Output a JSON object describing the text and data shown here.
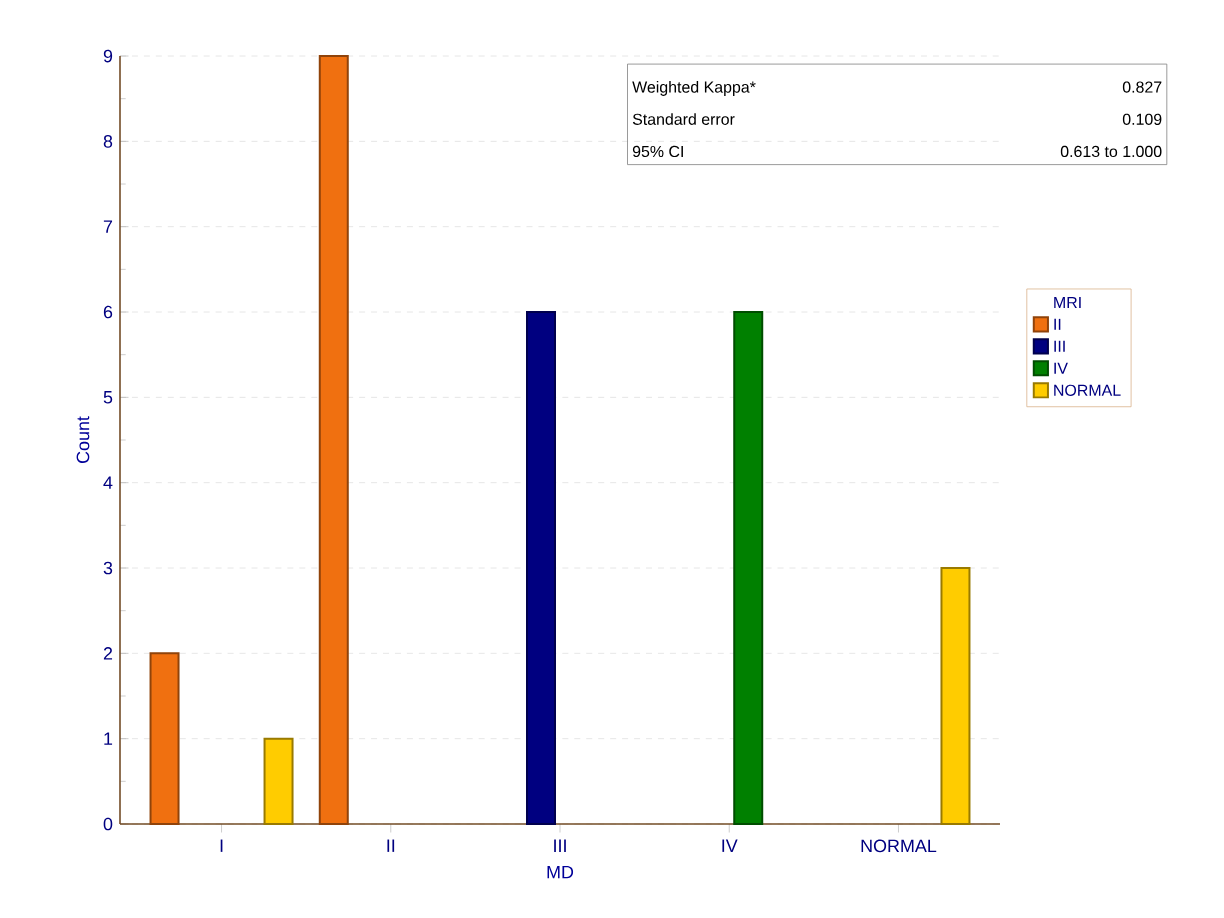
{
  "chart_data": {
    "type": "bar",
    "xlabel": "MD",
    "ylabel": "Count",
    "legend_title": "MRI",
    "categories": [
      "I",
      "II",
      "III",
      "IV",
      "NORMAL"
    ],
    "series": [
      {
        "name": "II",
        "color": "#f07010",
        "values": [
          2,
          9,
          null,
          null,
          null
        ]
      },
      {
        "name": "III",
        "color": "#000080",
        "values": [
          null,
          null,
          6,
          null,
          null
        ]
      },
      {
        "name": "IV",
        "color": "#008000",
        "values": [
          null,
          null,
          null,
          6,
          null
        ]
      },
      {
        "name": "NORMAL",
        "color": "#ffcc00",
        "values": [
          1,
          null,
          null,
          null,
          3
        ]
      }
    ],
    "ylim": [
      0,
      9
    ],
    "yticks": [
      0,
      1,
      2,
      3,
      4,
      5,
      6,
      7,
      8,
      9
    ],
    "grid": "y",
    "legend": "right",
    "annotations": [
      "Weighted Kappa*",
      "0.827",
      "Standard error",
      "0.109",
      "95% CI",
      "0.613 to 1.000"
    ]
  }
}
